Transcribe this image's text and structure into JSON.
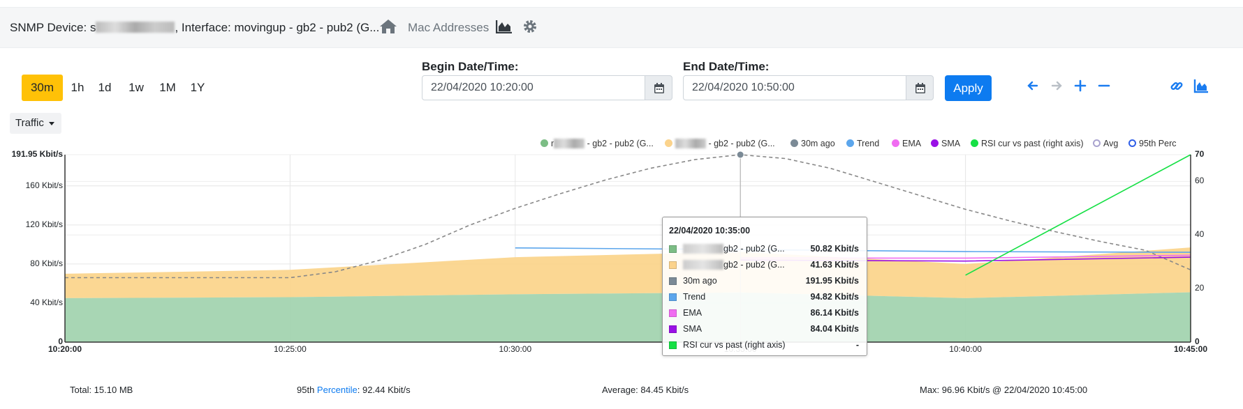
{
  "header": {
    "device_prefix": "SNMP Device: s",
    "device_suffix": ", Interface: movingup - gb2 - pub2 (G...",
    "mac_link": "Mac Addresses"
  },
  "ranges": [
    {
      "label": "30m",
      "active": true
    },
    {
      "label": "1h",
      "active": false
    },
    {
      "label": "1d",
      "active": false
    },
    {
      "label": "1w",
      "active": false
    },
    {
      "label": "1M",
      "active": false
    },
    {
      "label": "1Y",
      "active": false
    }
  ],
  "metric_dropdown": "Traffic",
  "begin": {
    "label": "Begin Date/Time:",
    "value": "22/04/2020 10:20:00"
  },
  "end": {
    "label": "End Date/Time:",
    "value": "22/04/2020 10:50:00"
  },
  "apply_label": "Apply",
  "legend": [
    {
      "text": "- gb2 - pub2 (G...",
      "prefix": "r",
      "color": "#7cbd85",
      "style": "filled",
      "blurred": true
    },
    {
      "text": "- gb2 - pub2 (G...",
      "prefix": "",
      "color": "#fbd38c",
      "style": "filled",
      "blurred": true
    },
    {
      "text": "30m ago",
      "prefix": "",
      "color": "#7b8a96",
      "style": "filled",
      "blurred": false
    },
    {
      "text": "Trend",
      "prefix": "",
      "color": "#5ca6ec",
      "style": "filled",
      "blurred": false
    },
    {
      "text": "EMA",
      "prefix": "",
      "color": "#f06cf1",
      "style": "filled",
      "blurred": false
    },
    {
      "text": "SMA",
      "prefix": "",
      "color": "#9a11e6",
      "style": "filled",
      "blurred": false
    },
    {
      "text": "RSI cur vs past (right axis)",
      "prefix": "",
      "color": "#16e045",
      "style": "filled",
      "blurred": false
    },
    {
      "text": "Avg",
      "prefix": "",
      "color": "#a9a3cf",
      "style": "ring",
      "blurred": false
    },
    {
      "text": "95th Perc",
      "prefix": "",
      "color": "#2f5fe8",
      "style": "ring",
      "blurred": false
    }
  ],
  "chart_data": {
    "type": "area",
    "x_ticks": [
      "10:20:00",
      "10:25:00",
      "10:30:00",
      "10:35:00",
      "10:40:00",
      "10:45:00"
    ],
    "x_minutes": [
      0,
      5,
      10,
      15,
      20,
      25
    ],
    "y_ticks": [
      "0",
      "40 Kbit/s",
      "80 Kbit/s",
      "120 Kbit/s",
      "160 Kbit/s",
      "191.95 Kbit/s"
    ],
    "y_tick_values": [
      0,
      40,
      80,
      120,
      160,
      191.95
    ],
    "ylim": [
      0,
      191.95
    ],
    "y2_ticks": [
      "0",
      "20",
      "40",
      "60",
      "70"
    ],
    "y2_tick_values": [
      0,
      20,
      40,
      60,
      70
    ],
    "y2lim": [
      0,
      70
    ],
    "grid": true,
    "series": [
      {
        "name": "gb2 - pub2 (G...)",
        "kind": "stack",
        "color": "#a3d4b0",
        "x": [
          0,
          5,
          10,
          15,
          20,
          25
        ],
        "values": [
          45,
          46,
          49,
          50.82,
          45,
          51
        ]
      },
      {
        "name": "gb2 - pub2 (G...)",
        "kind": "stack",
        "color": "#fbd58d",
        "x": [
          0,
          5,
          10,
          15,
          20,
          25
        ],
        "values": [
          25,
          28,
          38,
          41.63,
          35,
          45.96
        ]
      },
      {
        "name": "30m ago",
        "kind": "dashed",
        "color": "#888888",
        "x": [
          0,
          1,
          2,
          3,
          4,
          5,
          6,
          7,
          8,
          9,
          10,
          11,
          12,
          13,
          14,
          15,
          16,
          17,
          18,
          19,
          20,
          21,
          22,
          23,
          24,
          25
        ],
        "values": [
          66,
          66,
          66,
          66,
          66,
          66,
          72,
          84,
          100,
          120,
          137,
          152,
          166,
          178,
          187,
          191.95,
          188,
          178,
          164,
          150,
          136,
          124,
          113,
          103,
          94,
          74
        ]
      },
      {
        "name": "Trend",
        "kind": "line",
        "color": "#5ca6ec",
        "x": [
          10,
          15,
          20,
          25
        ],
        "values": [
          96.5,
          94.82,
          92.7,
          92
        ]
      },
      {
        "name": "EMA",
        "kind": "line",
        "color": "#f06cf1",
        "x": [
          15,
          20,
          25
        ],
        "values": [
          86.14,
          86,
          89
        ]
      },
      {
        "name": "SMA",
        "kind": "line",
        "color": "#9a11e6",
        "x": [
          15,
          20,
          25
        ],
        "values": [
          84.04,
          83,
          87
        ]
      },
      {
        "name": "RSI cur vs past (right axis)",
        "kind": "line_right",
        "color": "#16e045",
        "x": [
          20,
          25
        ],
        "values": [
          25,
          70
        ]
      }
    ],
    "crosshair_x": 15
  },
  "tooltip": {
    "title": "22/04/2020 10:35:00",
    "rows": [
      {
        "name": "gb2 - pub2 (G...",
        "value": "50.82 Kbit/s",
        "color": "#7cbd85",
        "blurred": true
      },
      {
        "name": "gb2 - pub2 (G...",
        "value": "41.63 Kbit/s",
        "color": "#fbd38c",
        "blurred": true
      },
      {
        "name": "30m ago",
        "value": "191.95 Kbit/s",
        "color": "#7b8a96",
        "blurred": false
      },
      {
        "name": "Trend",
        "value": "94.82 Kbit/s",
        "color": "#5ca6ec",
        "blurred": false
      },
      {
        "name": "EMA",
        "value": "86.14 Kbit/s",
        "color": "#f06cf1",
        "blurred": false
      },
      {
        "name": "SMA",
        "value": "84.04 Kbit/s",
        "color": "#9a11e6",
        "blurred": false
      },
      {
        "name": "RSI cur vs past (right axis)",
        "value": "-",
        "color": "#16e045",
        "blurred": false
      }
    ]
  },
  "footer": {
    "total": "Total: 15.10 MB",
    "p95_prefix": "95th ",
    "p95_link": "Percentile",
    "p95_value": ": 92.44 Kbit/s",
    "average": "Average: 84.45 Kbit/s",
    "max": "Max: 96.96 Kbit/s @ 22/04/2020 10:45:00"
  }
}
